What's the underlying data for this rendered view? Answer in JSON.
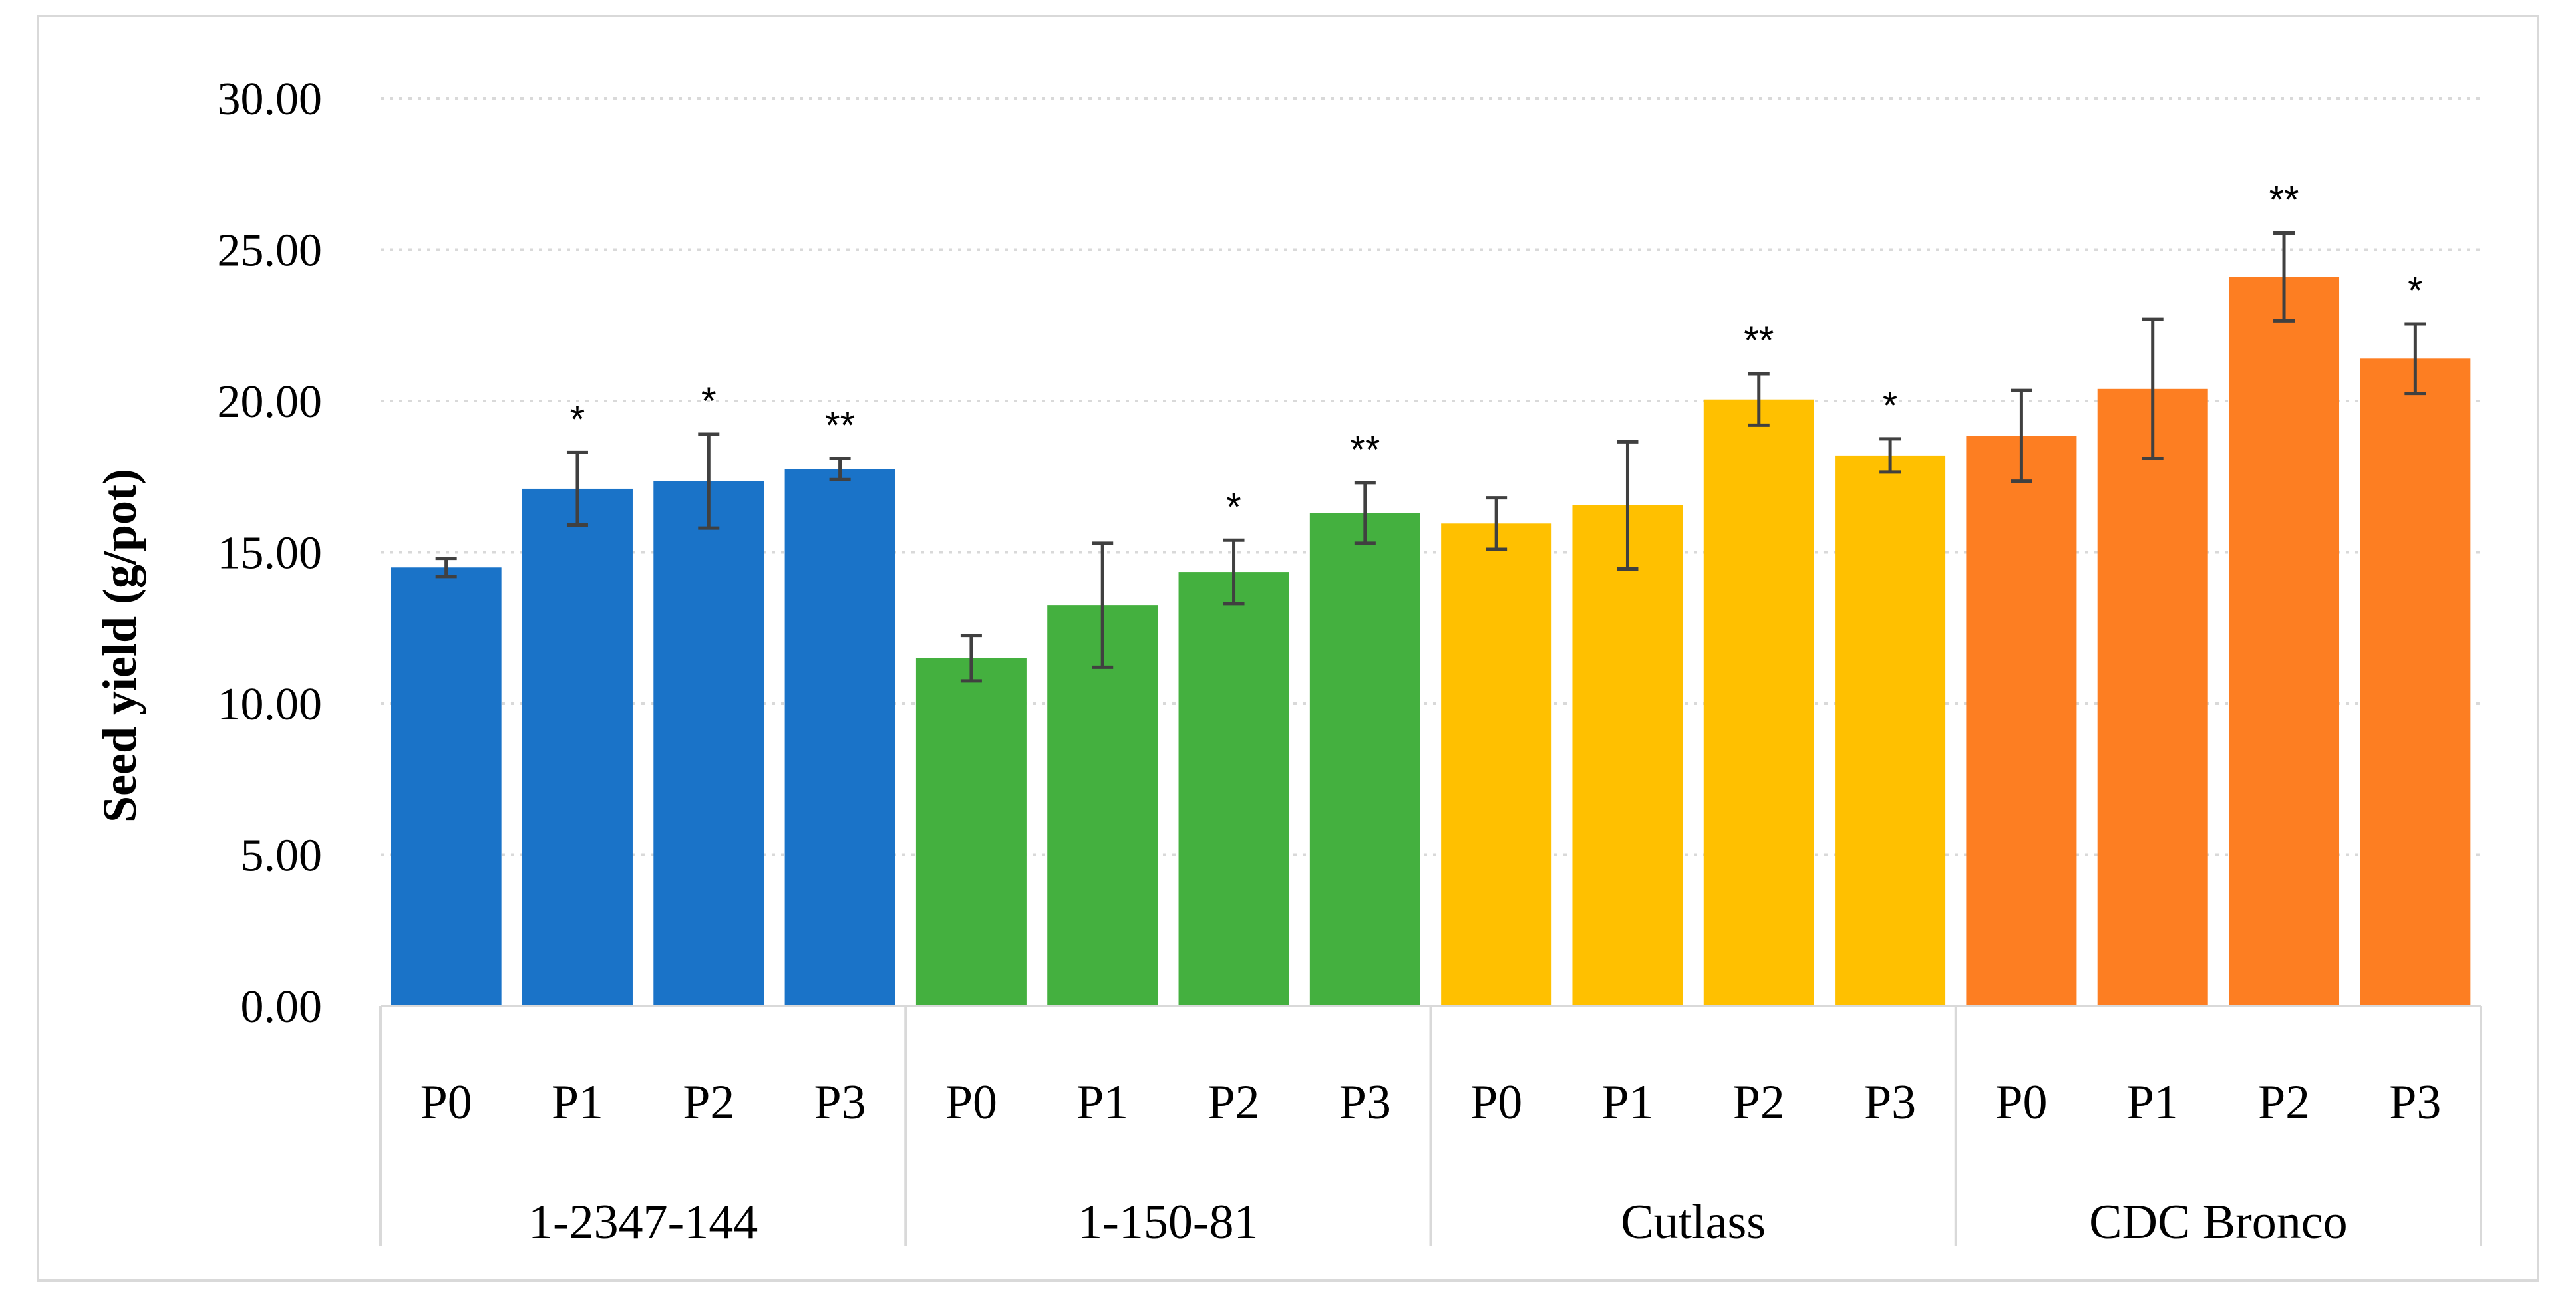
{
  "chart_data": {
    "type": "bar",
    "title": "",
    "xlabel": "",
    "ylabel": "Seed yield (g/pot)",
    "ylim": [
      0,
      30
    ],
    "yticks": [
      "0.00",
      "5.00",
      "10.00",
      "15.00",
      "20.00",
      "25.00",
      "30.00"
    ],
    "grid": true,
    "groups": [
      {
        "name": "1-2347-144",
        "color": "#1a73c8",
        "bars": [
          {
            "label": "P0",
            "value": 14.5,
            "err": 0.3,
            "sig": ""
          },
          {
            "label": "P1",
            "value": 17.1,
            "err": 1.2,
            "sig": "*"
          },
          {
            "label": "P2",
            "value": 17.35,
            "err": 1.55,
            "sig": "*"
          },
          {
            "label": "P3",
            "value": 17.75,
            "err": 0.35,
            "sig": "**"
          }
        ]
      },
      {
        "name": "1-150-81",
        "color": "#44b03f",
        "bars": [
          {
            "label": "P0",
            "value": 11.5,
            "err": 0.75,
            "sig": ""
          },
          {
            "label": "P1",
            "value": 13.25,
            "err": 2.05,
            "sig": ""
          },
          {
            "label": "P2",
            "value": 14.35,
            "err": 1.05,
            "sig": "*"
          },
          {
            "label": "P3",
            "value": 16.3,
            "err": 1.0,
            "sig": "**"
          }
        ]
      },
      {
        "name": "Cutlass",
        "color": "#ffc000",
        "bars": [
          {
            "label": "P0",
            "value": 15.95,
            "err": 0.85,
            "sig": ""
          },
          {
            "label": "P1",
            "value": 16.55,
            "err": 2.1,
            "sig": ""
          },
          {
            "label": "P2",
            "value": 20.05,
            "err": 0.85,
            "sig": "**"
          },
          {
            "label": "P3",
            "value": 18.2,
            "err": 0.55,
            "sig": "*"
          }
        ]
      },
      {
        "name": "CDC Bronco",
        "color": "#fd7e22",
        "bars": [
          {
            "label": "P0",
            "value": 18.85,
            "err": 1.5,
            "sig": ""
          },
          {
            "label": "P1",
            "value": 20.4,
            "err": 2.3,
            "sig": ""
          },
          {
            "label": "P2",
            "value": 24.1,
            "err": 1.45,
            "sig": "**"
          },
          {
            "label": "P3",
            "value": 21.4,
            "err": 1.15,
            "sig": "*"
          }
        ]
      }
    ]
  }
}
